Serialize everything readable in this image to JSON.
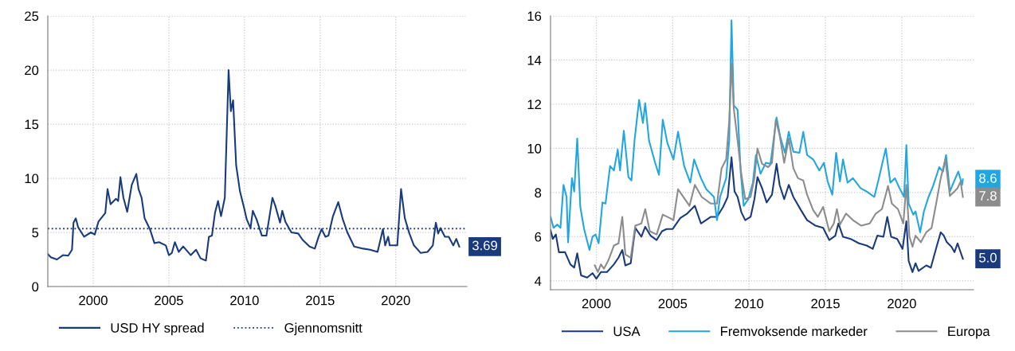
{
  "chart_data": [
    {
      "type": "line",
      "xlim": [
        1997,
        2024.7
      ],
      "ylim": [
        0,
        25
      ],
      "xticks": [
        2000,
        2005,
        2010,
        2015,
        2020
      ],
      "yticks": [
        0,
        5,
        10,
        15,
        20,
        25
      ],
      "grid": true,
      "legend": "bottom",
      "series": [
        {
          "name": "USD HY spread",
          "color": "#1a3a7e",
          "x": [
            1997.0,
            1997.2,
            1997.6,
            1998.0,
            1998.35,
            1998.6,
            1998.7,
            1998.85,
            1999.0,
            1999.4,
            1999.85,
            2000.1,
            2000.35,
            2000.8,
            2000.95,
            2001.15,
            2001.5,
            2001.65,
            2001.8,
            2002.0,
            2002.25,
            2002.55,
            2002.85,
            2003.0,
            2003.2,
            2003.4,
            2003.75,
            2004.05,
            2004.35,
            2004.8,
            2005.0,
            2005.2,
            2005.4,
            2005.65,
            2005.95,
            2006.45,
            2006.8,
            2007.1,
            2007.45,
            2007.65,
            2007.85,
            2008.05,
            2008.25,
            2008.45,
            2008.7,
            2008.95,
            2009.1,
            2009.25,
            2009.45,
            2009.7,
            2009.95,
            2010.15,
            2010.4,
            2010.55,
            2010.8,
            2011.15,
            2011.45,
            2011.85,
            2012.05,
            2012.35,
            2012.5,
            2012.7,
            2013.1,
            2013.55,
            2013.85,
            2014.3,
            2014.65,
            2014.9,
            2015.1,
            2015.35,
            2015.55,
            2015.85,
            2016.2,
            2016.5,
            2016.8,
            2017.25,
            2017.85,
            2018.3,
            2018.8,
            2019.15,
            2019.3,
            2019.5,
            2019.6,
            2020.1,
            2020.35,
            2020.6,
            2020.9,
            2021.2,
            2021.65,
            2022.1,
            2022.45,
            2022.65,
            2022.8,
            2022.95,
            2023.25,
            2023.5,
            2023.8,
            2024.0,
            2024.2
          ],
          "values": [
            3.0,
            2.7,
            2.5,
            2.9,
            2.85,
            3.4,
            5.9,
            6.3,
            5.5,
            4.6,
            5.0,
            4.8,
            6.0,
            6.8,
            9.0,
            7.6,
            8.1,
            7.9,
            10.1,
            8.2,
            6.9,
            9.4,
            10.4,
            9.0,
            8.2,
            6.3,
            5.3,
            4.0,
            4.1,
            3.8,
            2.9,
            3.1,
            4.1,
            3.2,
            3.7,
            2.9,
            3.4,
            2.6,
            2.4,
            4.6,
            4.7,
            6.8,
            7.9,
            6.5,
            8.2,
            20.0,
            16.2,
            17.2,
            11.2,
            8.8,
            7.4,
            6.2,
            5.4,
            7.0,
            6.2,
            4.7,
            4.7,
            8.2,
            7.4,
            5.9,
            7.0,
            6.0,
            5.0,
            4.9,
            4.3,
            3.7,
            3.5,
            4.6,
            5.3,
            4.6,
            4.7,
            6.5,
            7.8,
            6.2,
            5.0,
            3.7,
            3.5,
            3.4,
            3.2,
            5.3,
            3.8,
            4.6,
            3.8,
            3.8,
            9.0,
            6.3,
            4.9,
            3.8,
            3.1,
            3.2,
            3.8,
            5.9,
            4.9,
            5.4,
            4.6,
            4.6,
            3.8,
            4.4,
            3.69
          ],
          "value_labels": [
            null,
            null,
            null,
            null,
            null,
            null,
            null,
            null,
            null,
            null,
            null,
            null,
            null,
            null,
            null,
            null,
            null,
            null,
            null,
            null,
            null,
            null,
            null,
            null,
            null,
            null,
            null,
            null,
            null,
            null,
            null,
            null,
            null,
            null,
            null,
            null,
            null,
            null,
            null,
            null,
            null,
            null,
            null,
            null,
            null,
            null,
            null,
            null,
            null,
            null,
            null,
            null,
            null,
            null,
            null,
            null,
            null,
            null,
            null,
            null,
            null,
            null,
            null,
            null,
            null,
            null,
            null,
            null,
            null,
            null,
            null,
            null,
            null,
            null,
            null,
            null,
            null,
            null,
            null,
            null,
            null,
            null,
            null,
            null,
            null,
            null,
            null,
            null,
            null,
            null,
            null,
            null,
            null,
            null,
            null,
            null,
            null,
            null,
            "3.69"
          ]
        }
      ],
      "ref_lines": [
        {
          "axis": "y",
          "value": 5.35,
          "label": "Gjennomsnitt",
          "color": "#1a3a7e",
          "line_style": "dotted"
        }
      ]
    },
    {
      "type": "line",
      "xlim": [
        1997,
        2024.7
      ],
      "ylim": [
        3.6,
        16
      ],
      "xticks": [
        2000,
        2005,
        2010,
        2015,
        2020
      ],
      "yticks": [
        4,
        6,
        8,
        10,
        12,
        14,
        16
      ],
      "grid": true,
      "legend": "bottom",
      "series": [
        {
          "name": "USA",
          "color": "#1a3a7e",
          "x": [
            1997.0,
            1997.15,
            1997.35,
            1997.55,
            1997.95,
            1998.3,
            1998.55,
            1998.75,
            1999.0,
            1999.4,
            1999.75,
            2000.0,
            2000.3,
            2000.7,
            2001.15,
            2001.45,
            2001.7,
            2001.9,
            2002.25,
            2002.55,
            2002.95,
            2003.2,
            2003.55,
            2003.95,
            2004.3,
            2004.6,
            2005.0,
            2005.5,
            2005.95,
            2006.45,
            2006.85,
            2007.5,
            2007.9,
            2008.3,
            2008.6,
            2008.85,
            2009.05,
            2009.25,
            2009.5,
            2009.75,
            2010.1,
            2010.35,
            2010.55,
            2010.85,
            2011.15,
            2011.5,
            2011.8,
            2012.0,
            2012.3,
            2012.6,
            2012.9,
            2013.4,
            2013.8,
            2014.35,
            2014.85,
            2015.25,
            2015.65,
            2015.85,
            2016.15,
            2016.65,
            2017.2,
            2017.7,
            2018.1,
            2018.4,
            2018.8,
            2019.05,
            2019.3,
            2019.7,
            2020.05,
            2020.3,
            2020.45,
            2020.7,
            2020.9,
            2021.1,
            2021.6,
            2021.9,
            2022.3,
            2022.55,
            2022.75,
            2022.95,
            2023.25,
            2023.45,
            2023.65,
            2024.0
          ],
          "values": [
            6.3,
            5.9,
            6.1,
            5.3,
            5.3,
            4.75,
            4.6,
            5.25,
            4.25,
            4.15,
            4.35,
            4.1,
            4.4,
            4.4,
            4.75,
            5.05,
            5.4,
            4.7,
            4.8,
            6.4,
            6.0,
            6.45,
            6.05,
            5.85,
            6.25,
            6.35,
            6.35,
            6.85,
            7.05,
            7.4,
            6.6,
            6.9,
            6.9,
            7.35,
            7.8,
            9.6,
            8.05,
            7.8,
            7.1,
            6.75,
            6.9,
            7.7,
            8.7,
            8.2,
            7.55,
            7.9,
            9.3,
            8.35,
            7.7,
            8.35,
            7.8,
            7.2,
            6.75,
            6.5,
            6.4,
            5.85,
            6.05,
            6.6,
            6.0,
            5.9,
            5.7,
            5.6,
            5.45,
            6.05,
            6.0,
            6.9,
            6.0,
            5.9,
            5.45,
            6.7,
            4.9,
            4.4,
            4.8,
            4.45,
            4.7,
            4.6,
            5.6,
            6.2,
            6.05,
            5.75,
            5.55,
            5.3,
            5.7,
            5.0
          ],
          "value_labels": [
            null,
            null,
            null,
            null,
            null,
            null,
            null,
            null,
            null,
            null,
            null,
            null,
            null,
            null,
            null,
            null,
            null,
            null,
            null,
            null,
            null,
            null,
            null,
            null,
            null,
            null,
            null,
            null,
            null,
            null,
            null,
            null,
            null,
            null,
            null,
            null,
            null,
            null,
            null,
            null,
            null,
            null,
            null,
            null,
            null,
            null,
            null,
            null,
            null,
            null,
            null,
            null,
            null,
            null,
            null,
            null,
            null,
            null,
            null,
            null,
            null,
            null,
            null,
            null,
            null,
            null,
            null,
            null,
            null,
            null,
            null,
            null,
            null,
            null,
            null,
            null,
            null,
            null,
            null,
            null,
            null,
            null,
            null,
            "5.0"
          ]
        },
        {
          "name": "Fremvoksende markeder",
          "color": "#22a6e0",
          "x": [
            1997.0,
            1997.2,
            1997.45,
            1997.65,
            1997.85,
            1998.05,
            1998.15,
            1998.4,
            1998.55,
            1998.75,
            1998.95,
            1999.2,
            1999.55,
            1999.75,
            1999.95,
            2000.15,
            2000.4,
            2000.6,
            2000.9,
            2001.15,
            2001.4,
            2001.55,
            2001.8,
            2002.1,
            2002.3,
            2002.5,
            2002.8,
            2003.05,
            2003.2,
            2003.45,
            2003.85,
            2004.1,
            2004.35,
            2004.65,
            2005.05,
            2005.35,
            2005.75,
            2006.15,
            2006.4,
            2006.85,
            2007.2,
            2007.7,
            2007.9,
            2008.1,
            2008.5,
            2008.7,
            2008.85,
            2009.0,
            2009.25,
            2009.45,
            2009.65,
            2009.95,
            2010.25,
            2010.45,
            2010.75,
            2011.1,
            2011.4,
            2011.8,
            2012.05,
            2012.35,
            2012.6,
            2012.9,
            2013.3,
            2013.55,
            2013.8,
            2014.2,
            2014.6,
            2014.9,
            2015.15,
            2015.45,
            2015.7,
            2015.95,
            2016.15,
            2016.45,
            2016.8,
            2017.3,
            2017.7,
            2018.2,
            2018.5,
            2018.95,
            2019.25,
            2019.55,
            2019.85,
            2020.15,
            2020.3,
            2020.45,
            2020.75,
            2020.9,
            2021.2,
            2021.45,
            2021.75,
            2022.05,
            2022.45,
            2022.7,
            2022.9,
            2023.15,
            2023.45,
            2023.7,
            2023.95,
            2024.0
          ],
          "values": [
            6.9,
            6.4,
            6.55,
            6.4,
            8.35,
            7.8,
            5.75,
            8.65,
            8.05,
            10.45,
            7.35,
            6.35,
            5.4,
            6.0,
            6.1,
            5.7,
            7.55,
            7.5,
            9.2,
            9.0,
            9.95,
            9.0,
            10.8,
            8.7,
            8.55,
            10.35,
            12.2,
            11.15,
            12.05,
            10.35,
            9.35,
            8.8,
            11.3,
            10.25,
            9.5,
            10.75,
            9.2,
            8.45,
            9.5,
            8.65,
            8.15,
            7.8,
            6.75,
            7.8,
            8.65,
            10.35,
            15.8,
            11.95,
            11.75,
            8.95,
            7.4,
            7.7,
            8.45,
            9.7,
            8.85,
            9.35,
            9.3,
            11.4,
            10.5,
            9.8,
            10.75,
            9.85,
            9.8,
            10.75,
            9.7,
            9.5,
            9.0,
            9.35,
            8.5,
            7.9,
            9.8,
            8.5,
            9.5,
            8.45,
            8.65,
            8.2,
            8.05,
            7.8,
            8.65,
            10.0,
            8.45,
            8.65,
            8.2,
            7.8,
            10.15,
            7.5,
            7.0,
            7.15,
            6.2,
            7.15,
            7.8,
            8.3,
            9.15,
            8.95,
            9.7,
            8.05,
            8.55,
            8.95,
            8.35,
            8.6
          ],
          "value_labels": [
            null,
            null,
            null,
            null,
            null,
            null,
            null,
            null,
            null,
            null,
            null,
            null,
            null,
            null,
            null,
            null,
            null,
            null,
            null,
            null,
            null,
            null,
            null,
            null,
            null,
            null,
            null,
            null,
            null,
            null,
            null,
            null,
            null,
            null,
            null,
            null,
            null,
            null,
            null,
            null,
            null,
            null,
            null,
            null,
            null,
            null,
            null,
            null,
            null,
            null,
            null,
            null,
            null,
            null,
            null,
            null,
            null,
            null,
            null,
            null,
            null,
            null,
            null,
            null,
            null,
            null,
            null,
            null,
            null,
            null,
            null,
            null,
            null,
            null,
            null,
            null,
            null,
            null,
            null,
            null,
            null,
            null,
            null,
            null,
            null,
            null,
            null,
            null,
            null,
            null,
            null,
            null,
            null,
            null,
            null,
            null,
            null,
            null,
            null,
            "8.6"
          ]
        },
        {
          "name": "Europa",
          "color": "#8c8c8c",
          "x": [
            1999.9,
            2000.1,
            2000.3,
            2000.5,
            2000.8,
            2001.15,
            2001.45,
            2001.7,
            2001.9,
            2002.25,
            2002.55,
            2002.95,
            2003.2,
            2003.5,
            2003.95,
            2004.35,
            2004.8,
            2005.05,
            2005.35,
            2005.65,
            2006.1,
            2006.45,
            2006.9,
            2007.5,
            2007.9,
            2008.2,
            2008.5,
            2008.7,
            2008.85,
            2009.0,
            2009.25,
            2009.5,
            2009.75,
            2010.1,
            2010.35,
            2010.55,
            2010.85,
            2011.25,
            2011.5,
            2011.75,
            2012.0,
            2012.3,
            2012.6,
            2012.9,
            2013.2,
            2013.55,
            2013.8,
            2014.2,
            2014.5,
            2014.85,
            2015.25,
            2015.55,
            2015.75,
            2015.95,
            2016.35,
            2016.8,
            2017.35,
            2017.9,
            2018.3,
            2018.7,
            2019.1,
            2019.35,
            2019.75,
            2020.1,
            2020.3,
            2020.5,
            2020.7,
            2020.9,
            2021.25,
            2021.6,
            2021.95,
            2022.25,
            2022.55,
            2022.85,
            2023.15,
            2023.45,
            2023.65,
            2023.85,
            2024.0
          ],
          "values": [
            4.7,
            4.4,
            4.75,
            4.55,
            4.95,
            5.6,
            5.7,
            6.9,
            5.2,
            5.05,
            6.5,
            6.6,
            7.25,
            6.25,
            6.1,
            7.0,
            6.85,
            6.75,
            8.15,
            7.85,
            7.4,
            8.35,
            7.8,
            7.5,
            7.5,
            9.1,
            9.5,
            11.25,
            13.85,
            11.8,
            10.35,
            8.8,
            7.7,
            7.8,
            8.65,
            10.0,
            9.3,
            9.15,
            9.35,
            11.3,
            10.6,
            9.35,
            10.45,
            9.1,
            8.65,
            8.55,
            7.9,
            7.2,
            6.9,
            7.35,
            6.25,
            6.6,
            7.25,
            6.55,
            7.05,
            6.75,
            6.5,
            6.6,
            7.05,
            7.25,
            8.3,
            7.5,
            7.25,
            6.6,
            8.35,
            6.0,
            5.55,
            6.05,
            5.75,
            6.2,
            6.4,
            7.5,
            8.65,
            9.5,
            7.85,
            8.05,
            8.2,
            8.5,
            7.8
          ],
          "value_labels": [
            null,
            null,
            null,
            null,
            null,
            null,
            null,
            null,
            null,
            null,
            null,
            null,
            null,
            null,
            null,
            null,
            null,
            null,
            null,
            null,
            null,
            null,
            null,
            null,
            null,
            null,
            null,
            null,
            null,
            null,
            null,
            null,
            null,
            null,
            null,
            null,
            null,
            null,
            null,
            null,
            null,
            null,
            null,
            null,
            null,
            null,
            null,
            null,
            null,
            null,
            null,
            null,
            null,
            null,
            null,
            null,
            null,
            null,
            null,
            null,
            null,
            null,
            null,
            null,
            null,
            null,
            null,
            null,
            null,
            null,
            null,
            null,
            null,
            null,
            null,
            null,
            null,
            null,
            "7.8"
          ]
        }
      ]
    }
  ]
}
